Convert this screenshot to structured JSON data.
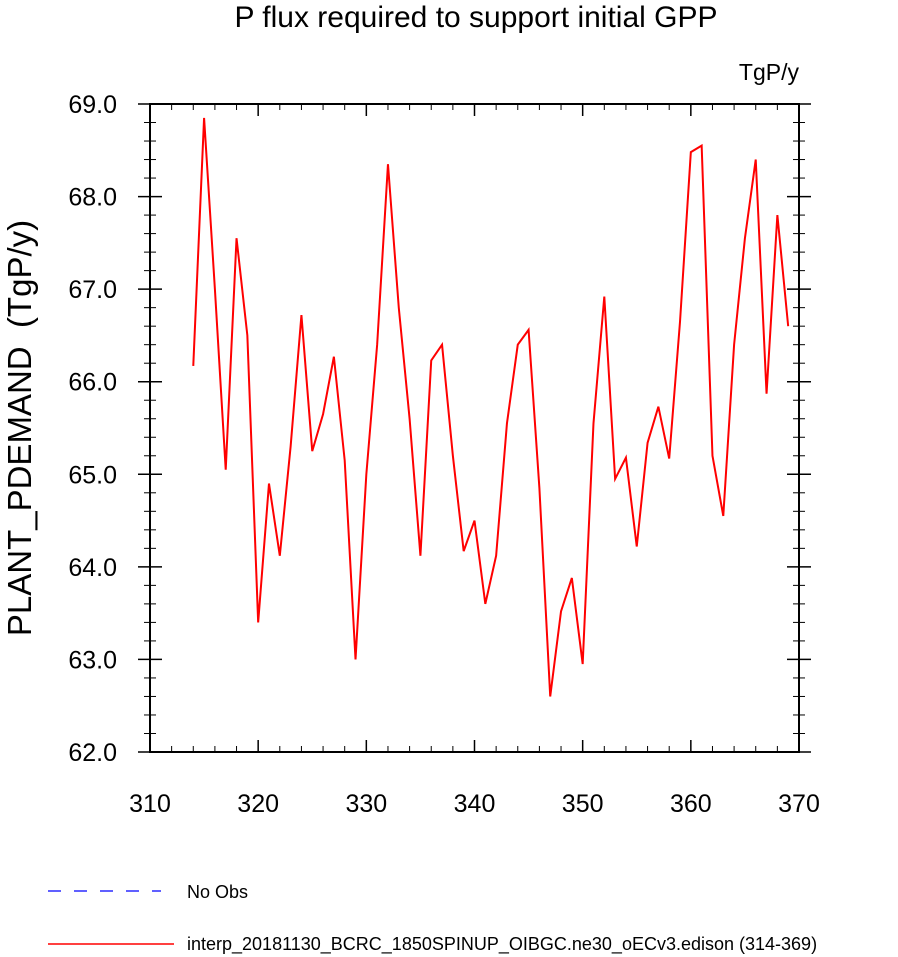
{
  "chart_data": {
    "type": "line",
    "title": "P flux required to support initial GPP",
    "units": "TgP/y",
    "ylabel": "PLANT_PDEMAND  (TgP/y)",
    "xlabel": "",
    "xlim": [
      310,
      370
    ],
    "ylim": [
      62.0,
      69.0
    ],
    "x_ticks": [
      310,
      320,
      330,
      340,
      350,
      360,
      370
    ],
    "x_tick_labels": [
      "310",
      "320",
      "330",
      "340",
      "350",
      "360",
      "370"
    ],
    "y_ticks": [
      62,
      63,
      64,
      65,
      66,
      67,
      68,
      69
    ],
    "y_tick_labels": [
      "62.0",
      "63.0",
      "64.0",
      "65.0",
      "66.0",
      "67.0",
      "68.0",
      "69.0"
    ],
    "grid": false,
    "legend_position": "bottom-left",
    "series": [
      {
        "name": "No Obs",
        "color": "#0000ff",
        "style": "dashed",
        "x": [],
        "values": []
      },
      {
        "name": "interp_20181130_BCRC_1850SPINUP_OIBGC.ne30_oECv3.edison (314-369)",
        "color": "#ff0000",
        "style": "solid",
        "x": [
          314,
          315,
          316,
          317,
          318,
          319,
          320,
          321,
          322,
          323,
          324,
          325,
          326,
          327,
          328,
          329,
          330,
          331,
          332,
          333,
          334,
          335,
          336,
          337,
          338,
          339,
          340,
          341,
          342,
          343,
          344,
          345,
          346,
          347,
          348,
          349,
          350,
          351,
          352,
          353,
          354,
          355,
          356,
          357,
          358,
          359,
          360,
          361,
          362,
          363,
          364,
          365,
          366,
          367,
          368,
          369
        ],
        "values": [
          66.17,
          68.85,
          67.0,
          65.05,
          67.55,
          66.5,
          63.4,
          64.9,
          64.12,
          65.3,
          66.72,
          65.25,
          65.65,
          66.27,
          65.15,
          63.0,
          65.0,
          66.4,
          68.35,
          66.8,
          65.6,
          64.12,
          66.23,
          66.4,
          65.2,
          64.17,
          64.5,
          63.6,
          64.12,
          65.55,
          66.4,
          66.56,
          64.85,
          62.6,
          63.52,
          63.88,
          62.95,
          65.55,
          66.92,
          64.95,
          65.18,
          64.22,
          65.34,
          65.73,
          65.17,
          66.65,
          68.48,
          68.55,
          65.2,
          64.55,
          66.4,
          67.55,
          68.4,
          65.87,
          67.8,
          66.6
        ]
      }
    ]
  }
}
